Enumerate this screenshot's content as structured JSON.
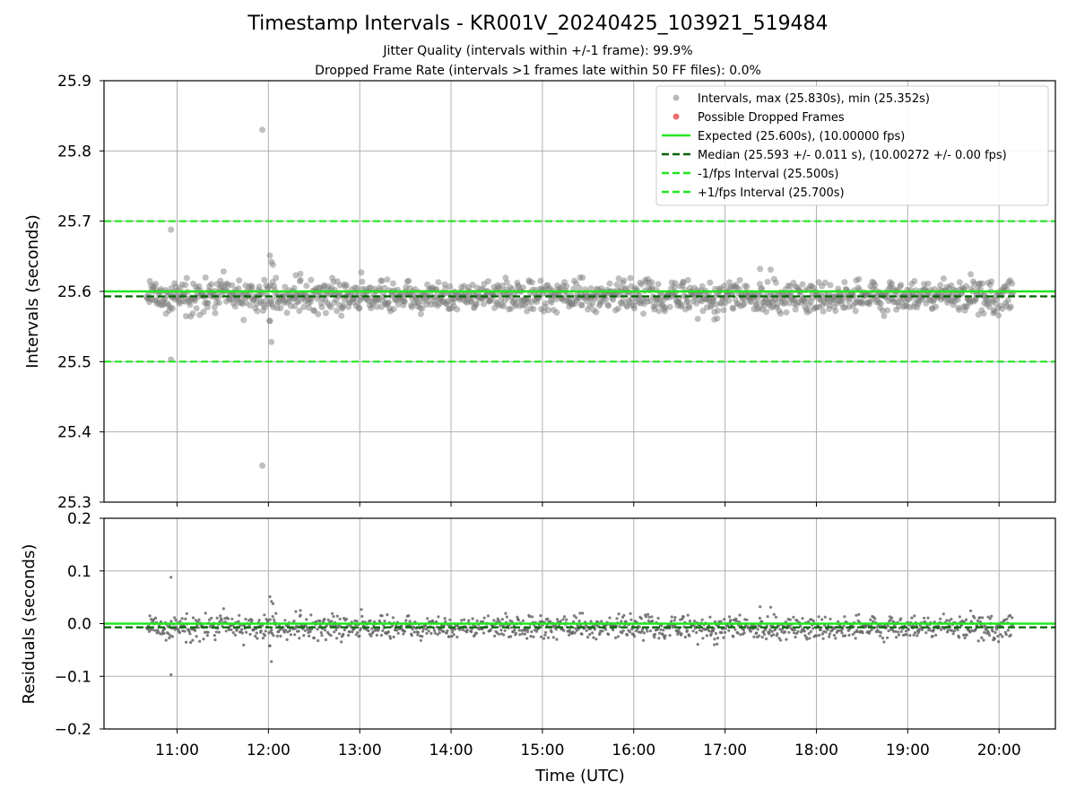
{
  "title": "Timestamp Intervals - KR001V_20240425_103921_519484",
  "subtitle_1": "Jitter Quality (intervals within +/-1 frame): 99.9%",
  "subtitle_2": "Dropped Frame Rate (intervals >1 frames late within 50 FF files): 0.0%",
  "colors": {
    "points": "#808080",
    "dropped": "#f06060",
    "expected": "#22e622",
    "median": "#006400",
    "bounds": "#22e622",
    "grid": "#b0b0b0"
  },
  "chart_data": [
    {
      "type": "scatter",
      "title": "",
      "ylabel": "Intervals (seconds)",
      "xlabel": "",
      "xlim": [
        "10:12",
        "20:37"
      ],
      "ylim": [
        25.3,
        25.9
      ],
      "yticks": [
        "25.3",
        "25.4",
        "25.5",
        "25.6",
        "25.7",
        "25.8",
        "25.9"
      ],
      "grid": true,
      "legend_position": "top-right",
      "legend": [
        "Intervals, max (25.830s), min (25.352s)",
        "Possible Dropped Frames",
        "Expected (25.600s), (10.00000 fps)",
        "Median (25.593 +/- 0.011 s), (10.00272 +/- 0.00 fps)",
        "-1/fps Interval (25.500s)",
        "+1/fps Interval (25.700s)"
      ],
      "x_range": [
        "10:40",
        "20:09"
      ],
      "point_count_approx": 1340,
      "typical_band": [
        25.57,
        25.62
      ],
      "max": 25.83,
      "min": 25.352,
      "expected": 25.6,
      "median": 25.593,
      "minus_1_fps": 25.5,
      "plus_1_fps": 25.7,
      "dropped_frames": [],
      "outliers": [
        {
          "x": "11:56",
          "y": 25.83
        },
        {
          "x": "11:56",
          "y": 25.352
        },
        {
          "x": "10:56",
          "y": 25.688
        },
        {
          "x": "10:56",
          "y": 25.503
        },
        {
          "x": "12:01",
          "y": 25.651
        },
        {
          "x": "12:02",
          "y": 25.642
        },
        {
          "x": "12:03",
          "y": 25.638
        },
        {
          "x": "12:02",
          "y": 25.528
        },
        {
          "x": "12:01",
          "y": 25.558
        },
        {
          "x": "17:23",
          "y": 25.632
        },
        {
          "x": "17:30",
          "y": 25.631
        },
        {
          "x": "16:53",
          "y": 25.56
        },
        {
          "x": "12:18",
          "y": 25.623
        },
        {
          "x": "12:21",
          "y": 25.625
        }
      ]
    },
    {
      "type": "scatter",
      "title": "",
      "ylabel": "Residuals (seconds)",
      "xlabel": "Time (UTC)",
      "ylim": [
        -0.2,
        0.2
      ],
      "yticks": [
        "−0.2",
        "−0.1",
        "0.0",
        "0.1",
        "0.2"
      ],
      "xticks": [
        "11:00",
        "12:00",
        "13:00",
        "14:00",
        "15:00",
        "16:00",
        "17:00",
        "18:00",
        "19:00",
        "20:00"
      ],
      "grid": true,
      "expected": 0.0,
      "median": -0.007,
      "outliers": [
        {
          "x": "10:56",
          "y": 0.087
        },
        {
          "x": "10:56",
          "y": -0.097
        },
        {
          "x": "12:01",
          "y": 0.051
        },
        {
          "x": "12:02",
          "y": 0.042
        },
        {
          "x": "12:03",
          "y": 0.038
        },
        {
          "x": "12:02",
          "y": -0.072
        },
        {
          "x": "17:23",
          "y": 0.032
        }
      ]
    }
  ]
}
